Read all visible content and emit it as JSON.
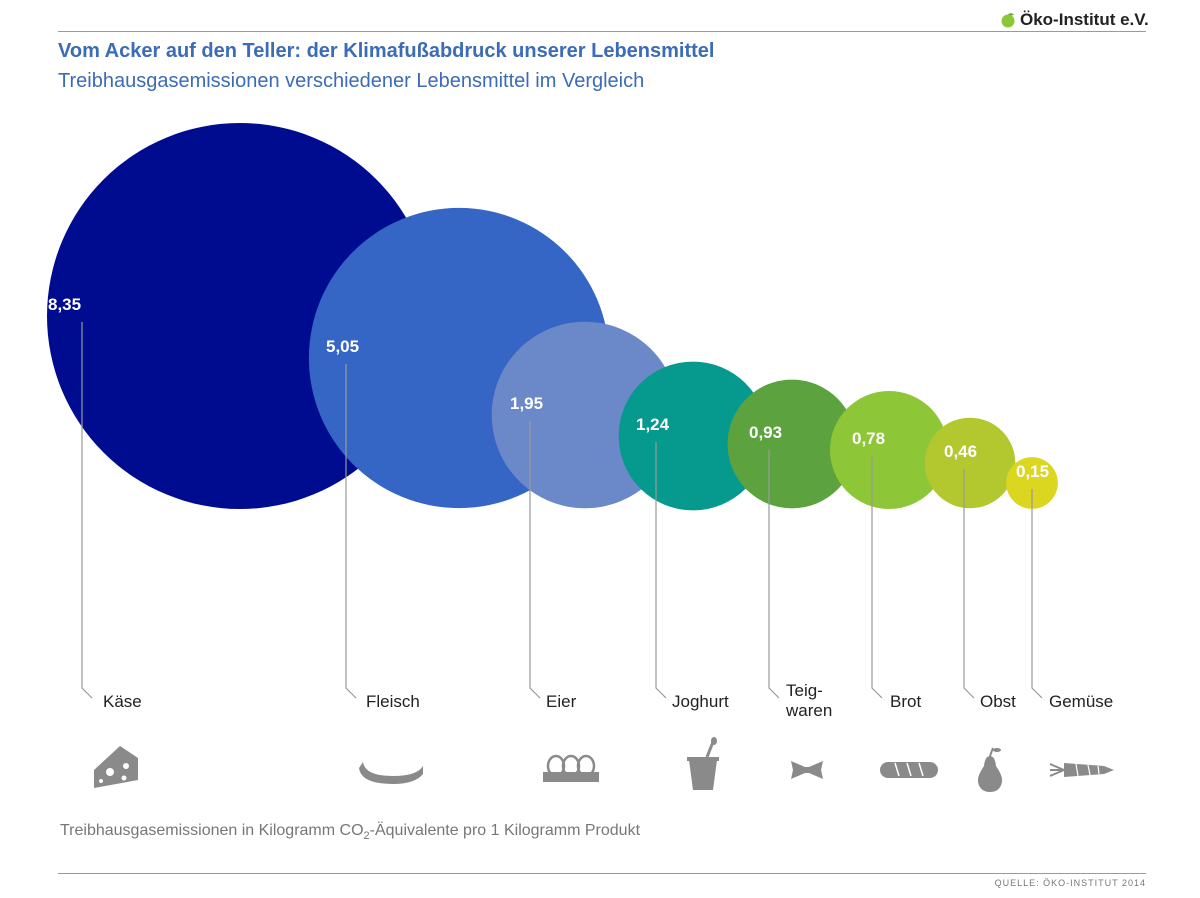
{
  "header": {
    "logo_text": "Öko-Institut e.V.",
    "title": "Vom Acker auf den Teller: der Klimafußabdruck unserer Lebensmittel",
    "subtitle": "Treibhausgasemissionen verschiedener Lebensmittel im Vergleich"
  },
  "footer": {
    "note_pre": "Treibhausgasemissionen in Kilogramm CO",
    "note_sub": "2",
    "note_post": "-Äquivalente pro 1 Kilogramm Produkt",
    "source": "QUELLE: ÖKO-INSTITUT 2014"
  },
  "colors": {
    "title": "#3c6bb8",
    "leader": "#9a9a9a",
    "icon": "#8a8a8a",
    "label": "#222222"
  },
  "chart_data": {
    "type": "bubble",
    "title": "Vom Acker auf den Teller: der Klimafußabdruck unserer Lebensmittel",
    "subtitle": "Treibhausgasemissionen verschiedener Lebensmittel im Vergleich",
    "unit": "kg CO2-Äquivalente pro 1 kg Produkt",
    "items": [
      {
        "category": "Käse",
        "value": 8.35,
        "value_label": "8,35",
        "color": "#000c8f",
        "icon": "cheese-icon"
      },
      {
        "category": "Fleisch",
        "value": 5.05,
        "value_label": "5,05",
        "color": "#3566c6",
        "icon": "sausage-icon"
      },
      {
        "category": "Eier",
        "value": 1.95,
        "value_label": "1,95",
        "color": "#6b88c8",
        "icon": "eggs-icon"
      },
      {
        "category": "Joghurt",
        "value": 1.24,
        "value_label": "1,24",
        "color": "#069a8e",
        "icon": "yoghurt-icon"
      },
      {
        "category": "Teigwaren",
        "category_lines": [
          "Teig-",
          "waren"
        ],
        "value": 0.93,
        "value_label": "0,93",
        "color": "#5ca33f",
        "icon": "pasta-icon"
      },
      {
        "category": "Brot",
        "value": 0.78,
        "value_label": "0,78",
        "color": "#8dc636",
        "icon": "bread-icon"
      },
      {
        "category": "Obst",
        "value": 0.46,
        "value_label": "0,46",
        "color": "#b3c72f",
        "icon": "pear-icon"
      },
      {
        "category": "Gemüse",
        "value": 0.15,
        "value_label": "0,15",
        "color": "#dbd620",
        "icon": "carrot-icon"
      }
    ]
  }
}
